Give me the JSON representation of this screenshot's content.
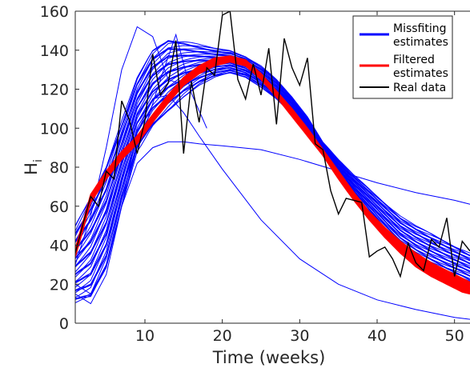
{
  "chart_data": {
    "type": "line",
    "xlabel": "Time (weeks)",
    "ylabel": "H",
    "ylabel_subscript": "i",
    "xlim": [
      1,
      52
    ],
    "ylim": [
      0,
      160
    ],
    "xticks": [
      "10",
      "20",
      "30",
      "40",
      "50"
    ],
    "yticks": [
      "0",
      "20",
      "40",
      "60",
      "80",
      "100",
      "120",
      "140",
      "160"
    ],
    "legend_position": "top-right",
    "legend": [
      {
        "label_line1": "Missfiting",
        "label_line2": "estimates",
        "color": "#0000ff"
      },
      {
        "label_line1": "Filtered",
        "label_line2": "estimates",
        "color": "#ff0000"
      },
      {
        "label_line1": "Real data",
        "label_line2": "",
        "color": "#000000"
      }
    ],
    "series": [
      {
        "name": "Missfiting estimates",
        "color": "#0000ff",
        "band_upper": {
          "x": [
            1,
            3,
            5,
            7,
            9,
            11,
            13,
            15,
            17,
            19,
            21,
            23,
            25,
            27,
            29,
            31,
            33,
            35,
            37,
            39,
            41,
            43,
            45,
            47,
            49,
            51,
            52
          ],
          "y": [
            50,
            65,
            82,
            104,
            126,
            140,
            146,
            145,
            143,
            141,
            140,
            137,
            132,
            125,
            116,
            106,
            93,
            84,
            76,
            69,
            62,
            55,
            50,
            46,
            42,
            38,
            36
          ]
        },
        "band_lower": {
          "x": [
            1,
            3,
            5,
            7,
            9,
            11,
            13,
            15,
            17,
            19,
            21,
            23,
            25,
            27,
            29,
            31,
            33,
            35,
            37,
            39,
            41,
            43,
            45,
            47,
            49,
            51,
            52
          ],
          "y": [
            10,
            12,
            28,
            60,
            88,
            100,
            108,
            116,
            122,
            126,
            128,
            126,
            121,
            115,
            107,
            98,
            86,
            75,
            65,
            55,
            45,
            36,
            30,
            25,
            21,
            18,
            16
          ]
        },
        "outliers": [
          {
            "x": [
              1,
              3,
              5,
              7,
              9,
              11,
              13,
              15
            ],
            "y": [
              30,
              55,
              90,
              130,
              152,
              147,
              125,
              122
            ]
          },
          {
            "x": [
              1,
              3,
              5,
              7,
              9,
              11,
              13,
              15,
              17,
              20,
              25,
              30,
              35,
              40,
              45,
              50,
              52
            ],
            "y": [
              20,
              15,
              30,
              60,
              82,
              90,
              93,
              93,
              92,
              91,
              89,
              84,
              78,
              72,
              67,
              63,
              61
            ]
          },
          {
            "x": [
              1,
              3,
              5,
              7,
              9,
              11,
              13,
              15,
              17,
              20,
              25,
              30,
              35,
              40,
              45,
              50,
              52
            ],
            "y": [
              15,
              10,
              25,
              60,
              98,
              115,
              117,
              108,
              96,
              79,
              53,
              33,
              20,
              12,
              7,
              3,
              2
            ]
          },
          {
            "x": [
              8,
              10,
              12,
              14,
              16,
              18
            ],
            "y": [
              90,
              100,
              125,
              148,
              118,
              100
            ]
          }
        ]
      },
      {
        "name": "Filtered estimates",
        "color": "#ff0000",
        "band_upper": {
          "x": [
            1,
            3,
            5,
            7,
            9,
            11,
            13,
            15,
            17,
            19,
            21,
            23,
            25,
            27,
            29,
            31,
            33,
            35,
            37,
            39,
            41,
            43,
            45,
            47,
            49,
            51,
            52
          ],
          "y": [
            38,
            66,
            78,
            88,
            96,
            107,
            117,
            126,
            132,
            136,
            137,
            135,
            128,
            119,
            110,
            100,
            89,
            78,
            67,
            57,
            49,
            42,
            36,
            31,
            27,
            23,
            21
          ]
        },
        "band_lower": {
          "x": [
            1,
            3,
            5,
            7,
            9,
            11,
            13,
            15,
            17,
            19,
            21,
            23,
            25,
            27,
            29,
            31,
            33,
            35,
            37,
            39,
            41,
            43,
            45,
            47,
            49,
            51,
            52
          ],
          "y": [
            34,
            62,
            74,
            84,
            92,
            103,
            113,
            122,
            128,
            132,
            134,
            132,
            125,
            116,
            106,
            96,
            86,
            74,
            63,
            53,
            44,
            36,
            29,
            24,
            20,
            16,
            15
          ]
        }
      },
      {
        "name": "Real data",
        "color": "#000000",
        "x": [
          1,
          2,
          3,
          4,
          5,
          6,
          7,
          8,
          9,
          10,
          11,
          12,
          13,
          14,
          15,
          16,
          17,
          18,
          19,
          20,
          21,
          22,
          23,
          24,
          25,
          26,
          27,
          28,
          29,
          30,
          31,
          32,
          33,
          34,
          35,
          36,
          37,
          38,
          39,
          40,
          41,
          42,
          43,
          44,
          45,
          46,
          47,
          48,
          49,
          50,
          51,
          52
        ],
        "y": [
          36,
          51,
          65,
          60,
          78,
          74,
          114,
          104,
          87,
          104,
          138,
          117,
          123,
          145,
          87,
          124,
          103,
          131,
          127,
          158,
          160,
          125,
          115,
          133,
          117,
          141,
          102,
          146,
          131,
          122,
          136,
          92,
          89,
          68,
          56,
          64,
          63,
          62,
          34,
          37,
          39,
          33,
          24,
          41,
          31,
          27,
          43,
          39,
          54,
          24,
          42,
          37
        ]
      }
    ]
  }
}
